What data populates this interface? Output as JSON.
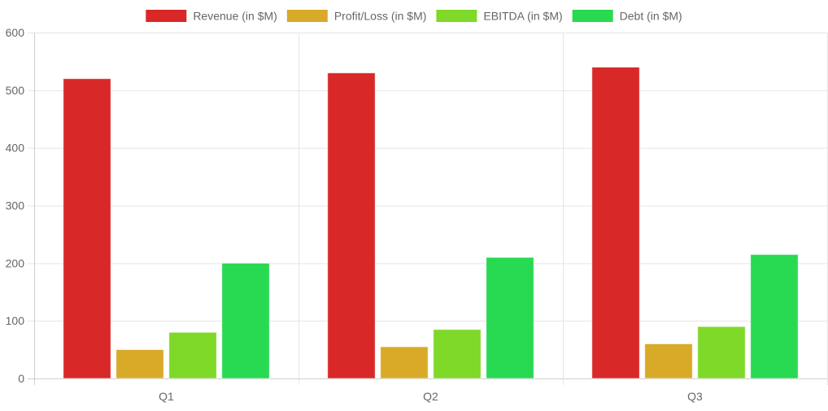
{
  "chart_data": {
    "type": "bar",
    "categories": [
      "Q1",
      "Q2",
      "Q3"
    ],
    "series": [
      {
        "name": "Revenue (in $M)",
        "color": "#d92828",
        "values": [
          520,
          530,
          540
        ]
      },
      {
        "name": "Profit/Loss (in $M)",
        "color": "#d9aa28",
        "values": [
          50,
          55,
          60
        ]
      },
      {
        "name": "EBITDA (in $M)",
        "color": "#7fd928",
        "values": [
          80,
          85,
          90
        ]
      },
      {
        "name": "Debt (in $M)",
        "color": "#28d952",
        "values": [
          200,
          210,
          215
        ]
      }
    ],
    "title": "",
    "xlabel": "",
    "ylabel": "",
    "ylim": [
      0,
      600
    ],
    "yticks": [
      0,
      100,
      200,
      300,
      400,
      500,
      600
    ],
    "grid": true,
    "legend_position": "top"
  }
}
